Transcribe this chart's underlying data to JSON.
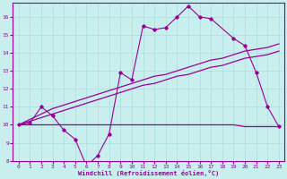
{
  "xlabel": "Windchill (Refroidissement éolien,°C)",
  "background_color": "#c8eeee",
  "grid_color": "#aadddd",
  "line_color": "#990099",
  "xlim": [
    -0.5,
    23.5
  ],
  "ylim": [
    8,
    16.8
  ],
  "xticks": [
    0,
    1,
    2,
    3,
    4,
    5,
    6,
    7,
    8,
    9,
    10,
    11,
    12,
    13,
    14,
    15,
    16,
    17,
    18,
    19,
    20,
    21,
    22,
    23
  ],
  "yticks": [
    8,
    9,
    10,
    11,
    12,
    13,
    14,
    15,
    16
  ],
  "line1_x": [
    0,
    1,
    2,
    3,
    4,
    5,
    6,
    7,
    8,
    9,
    10,
    11,
    12,
    13,
    14,
    15,
    16,
    17,
    19,
    20,
    21,
    22,
    23
  ],
  "line1_y": [
    10.0,
    10.1,
    11.0,
    10.5,
    9.7,
    9.2,
    7.7,
    8.3,
    9.5,
    12.9,
    12.5,
    15.5,
    15.3,
    15.4,
    16.0,
    16.6,
    16.0,
    15.9,
    14.8,
    14.4,
    12.9,
    11.0,
    9.9
  ],
  "line2_x": [
    0,
    5,
    9,
    10,
    11,
    12,
    13,
    14,
    15,
    16,
    17,
    18,
    19,
    20,
    21,
    22,
    23
  ],
  "line2_y": [
    10.0,
    10.0,
    10.0,
    10.0,
    10.0,
    10.0,
    10.0,
    10.0,
    10.0,
    10.0,
    10.0,
    10.0,
    10.0,
    9.9,
    9.9,
    9.9,
    9.9
  ],
  "line3_x": [
    0,
    1,
    2,
    3,
    4,
    5,
    6,
    7,
    8,
    9,
    10,
    11,
    12,
    13,
    14,
    15,
    16,
    17,
    18,
    19,
    20,
    21,
    22,
    23
  ],
  "line3_y": [
    10.0,
    10.3,
    10.6,
    10.9,
    11.1,
    11.3,
    11.5,
    11.7,
    11.9,
    12.1,
    12.3,
    12.5,
    12.7,
    12.8,
    13.0,
    13.2,
    13.4,
    13.6,
    13.7,
    13.9,
    14.1,
    14.2,
    14.3,
    14.5
  ],
  "line4_x": [
    0,
    1,
    2,
    3,
    4,
    5,
    6,
    7,
    8,
    9,
    10,
    11,
    12,
    13,
    14,
    15,
    16,
    17,
    18,
    19,
    20,
    21,
    22,
    23
  ],
  "line4_y": [
    10.0,
    10.2,
    10.4,
    10.6,
    10.8,
    11.0,
    11.2,
    11.4,
    11.6,
    11.8,
    12.0,
    12.2,
    12.3,
    12.5,
    12.7,
    12.8,
    13.0,
    13.2,
    13.3,
    13.5,
    13.7,
    13.8,
    13.9,
    14.1
  ]
}
